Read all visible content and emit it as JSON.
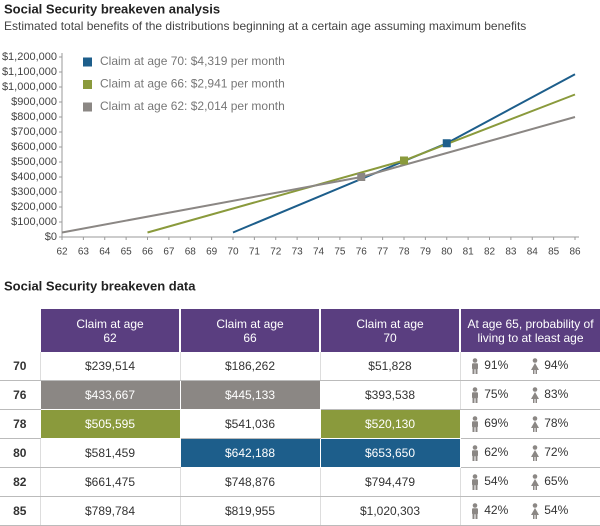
{
  "chart_data": {
    "type": "line",
    "title": "Social Security breakeven analysis",
    "subtitle": "Estimated total benefits of the distributions beginning at a certain age assuming maximum benefits",
    "xlim": [
      62,
      86
    ],
    "xticks": [
      62,
      63,
      64,
      65,
      66,
      67,
      68,
      69,
      70,
      71,
      72,
      73,
      74,
      75,
      76,
      77,
      78,
      79,
      80,
      81,
      82,
      83,
      84,
      85,
      86
    ],
    "ylim": [
      0,
      1200000
    ],
    "yticks": [
      {
        "value": 0,
        "label": "$0"
      },
      {
        "value": 100000,
        "label": "$100,000"
      },
      {
        "value": 200000,
        "label": "$200,000"
      },
      {
        "value": 300000,
        "label": "$300,000"
      },
      {
        "value": 400000,
        "label": "$400,000"
      },
      {
        "value": 500000,
        "label": "$500,000"
      },
      {
        "value": 600000,
        "label": "$600,000"
      },
      {
        "value": 700000,
        "label": "$700,000"
      },
      {
        "value": 800000,
        "label": "$800,000"
      },
      {
        "value": 900000,
        "label": "$900,000"
      },
      {
        "value": 1000000,
        "label": "$1,000,000"
      },
      {
        "value": 1100000,
        "label": "$1,100,000"
      },
      {
        "value": 1200000,
        "label": "$1,200,000"
      }
    ],
    "series": [
      {
        "name": "Claim at age 70: $4,319 per month",
        "color": "#1d5e8b",
        "x": [
          70,
          80,
          86
        ],
        "values": [
          30000,
          625000,
          1085000
        ],
        "marker": {
          "x": 80,
          "value": 625000
        }
      },
      {
        "name": "Claim at age 66: $2,941 per month",
        "color": "#8a9a3c",
        "x": [
          66,
          78,
          86
        ],
        "values": [
          30000,
          510000,
          950000
        ],
        "marker": {
          "x": 78,
          "value": 510000
        }
      },
      {
        "name": "Claim at age 62: $2,014 per month",
        "color": "#8b8784",
        "x": [
          62,
          76,
          86
        ],
        "values": [
          30000,
          400000,
          800000
        ],
        "marker": {
          "x": 76,
          "value": 400000
        }
      }
    ]
  },
  "table": {
    "title": "Social Security breakeven data",
    "header": [
      "Claim at age 62",
      "Claim at age 66",
      "Claim at age 70",
      "At age 65, probability of living to at least age"
    ],
    "rows": [
      [
        "70",
        "$239,514",
        "$186,262",
        "$51,828",
        "91%",
        "94%"
      ],
      [
        "76",
        "$433,667",
        "$445,133",
        "$393,538",
        "75%",
        "83%"
      ],
      [
        "78",
        "$505,595",
        "$541,036",
        "$520,130",
        "69%",
        "78%"
      ],
      [
        "80",
        "$581,459",
        "$642,188",
        "$653,650",
        "62%",
        "72%"
      ],
      [
        "82",
        "$661,475",
        "$748,876",
        "$794,479",
        "54%",
        "65%"
      ],
      [
        "85",
        "$789,784",
        "$819,955",
        "$1,020,303",
        "42%",
        "54%"
      ]
    ]
  }
}
